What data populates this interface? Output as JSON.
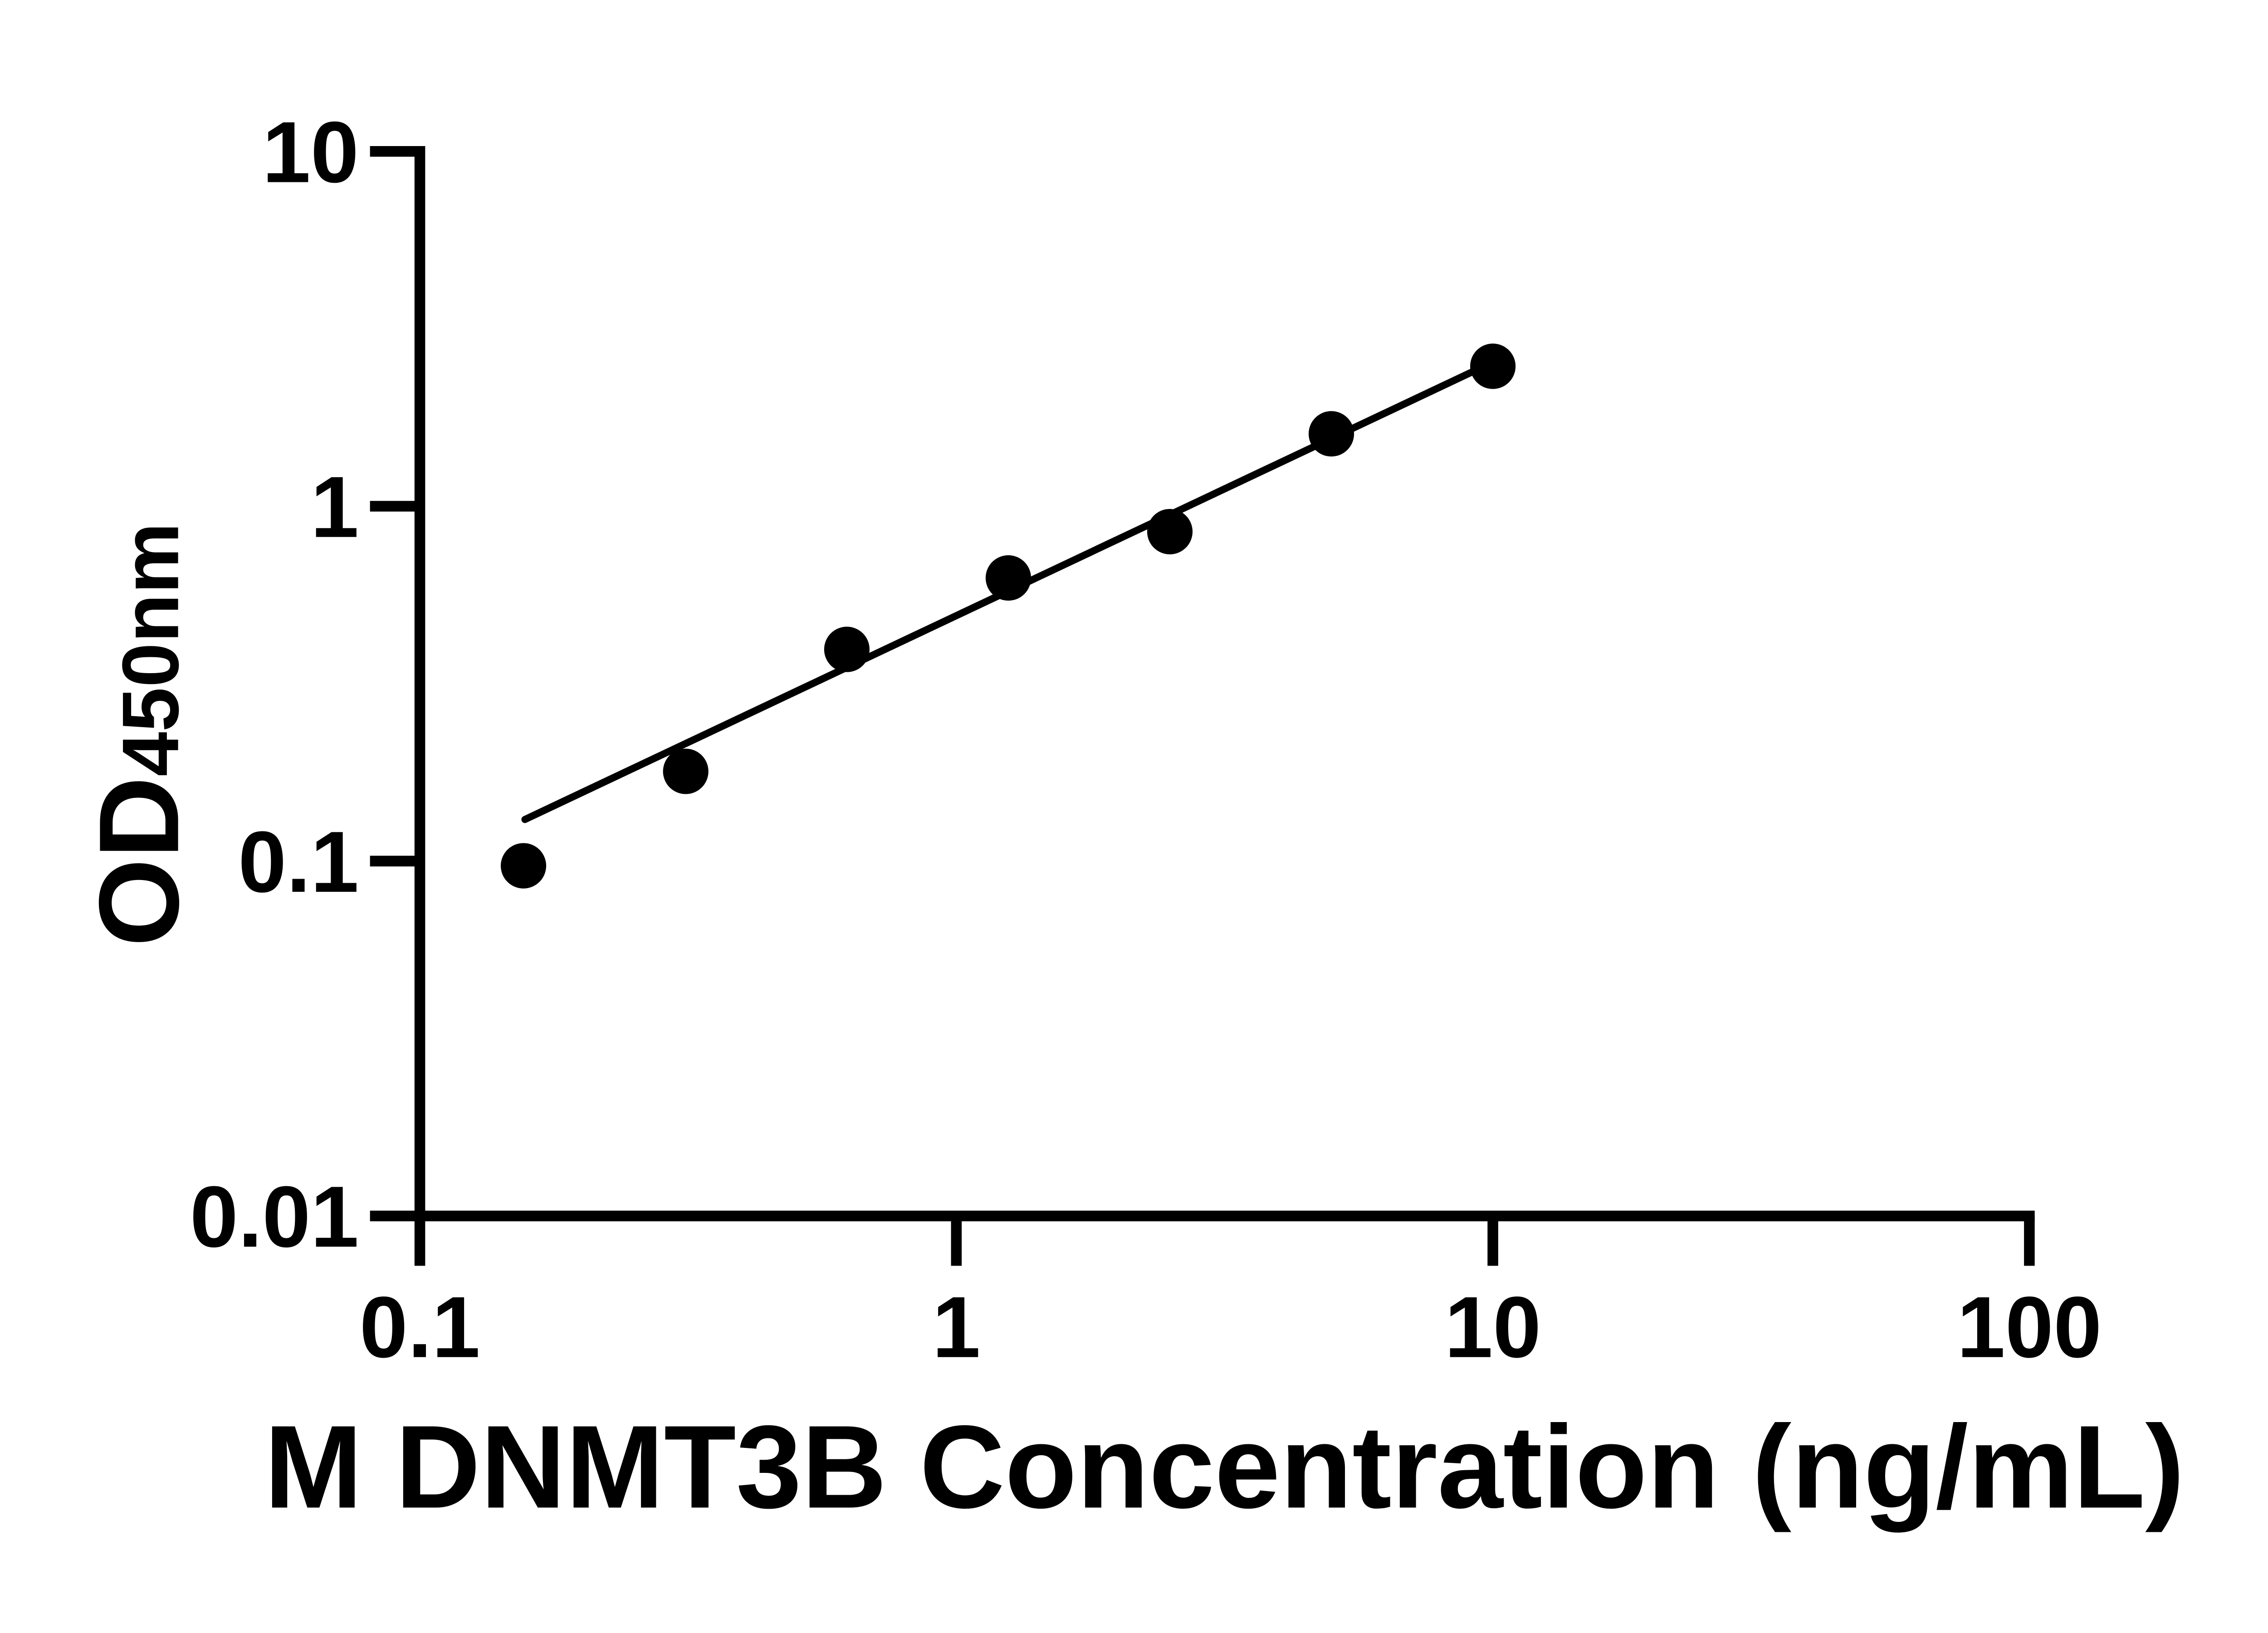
{
  "figure": {
    "background_color": "#ffffff",
    "ink_color": "#000000",
    "kind": "ELISA standard curve"
  },
  "chart_data": {
    "type": "scatter",
    "title": "",
    "xlabel": "M DNMT3B Concentration (ng/mL)",
    "ylabel": "OD450nm",
    "ylabel_parts": {
      "base": "OD",
      "subscript": "450nm"
    },
    "x_scale": "log",
    "y_scale": "log",
    "xlim": [
      0.1,
      100
    ],
    "ylim": [
      0.01,
      10
    ],
    "x_tick_values": [
      0.1,
      1,
      10,
      100
    ],
    "x_tick_labels": [
      "0.1",
      "1",
      "10",
      "100"
    ],
    "y_tick_values": [
      10,
      1,
      0.1,
      0.01
    ],
    "y_tick_labels": [
      "10",
      "1",
      "0.1",
      "0.01"
    ],
    "grid": false,
    "legend": null,
    "series": [
      {
        "name": "standard-curve-points",
        "marker": "filled-circle",
        "color": "#000000",
        "points": [
          {
            "x": 0.156,
            "y": 0.097
          },
          {
            "x": 0.313,
            "y": 0.179
          },
          {
            "x": 0.625,
            "y": 0.395
          },
          {
            "x": 1.25,
            "y": 0.628
          },
          {
            "x": 2.5,
            "y": 0.848
          },
          {
            "x": 5,
            "y": 1.6
          },
          {
            "x": 10,
            "y": 2.48
          }
        ]
      }
    ],
    "trend_line": {
      "shape": "straight-in-loglog",
      "color": "#000000",
      "x_start": 0.157,
      "y_start": 0.131,
      "x_end": 9.74,
      "y_end": 2.5
    }
  }
}
